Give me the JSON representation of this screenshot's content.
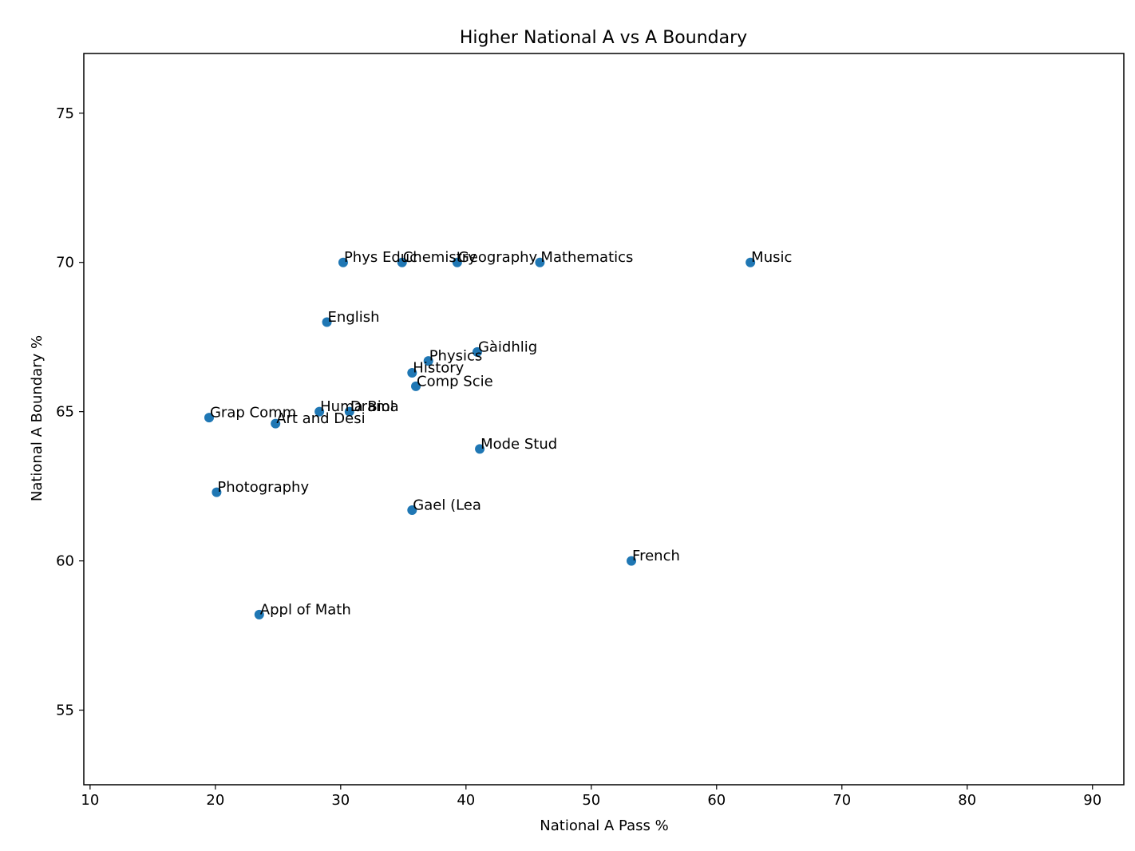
{
  "chart_data": {
    "type": "scatter",
    "title": "Higher National A vs A Boundary",
    "xlabel": "National A Pass %",
    "ylabel": "National A Boundary %",
    "xlim": [
      9.5,
      92.5
    ],
    "ylim": [
      52.5,
      77.0
    ],
    "xticks": [
      10,
      20,
      30,
      40,
      50,
      60,
      70,
      80,
      90
    ],
    "yticks": [
      55,
      60,
      65,
      70,
      75
    ],
    "grid": false,
    "marker_color": "#1f77b4",
    "points": [
      {
        "label": "Phys Educ",
        "x": 30.2,
        "y": 70.0
      },
      {
        "label": "Chemistry",
        "x": 34.9,
        "y": 70.0
      },
      {
        "label": "Geography",
        "x": 39.3,
        "y": 70.0
      },
      {
        "label": "Mathematics",
        "x": 45.9,
        "y": 70.0
      },
      {
        "label": "Music",
        "x": 62.7,
        "y": 70.0
      },
      {
        "label": "English",
        "x": 28.9,
        "y": 68.0
      },
      {
        "label": "Gàidhlig",
        "x": 40.9,
        "y": 67.0
      },
      {
        "label": "Physics",
        "x": 37.0,
        "y": 66.7
      },
      {
        "label": "History",
        "x": 35.7,
        "y": 66.3
      },
      {
        "label": "Comp Scie",
        "x": 36.0,
        "y": 65.85
      },
      {
        "label": "Huma Biol",
        "x": 28.3,
        "y": 65.0
      },
      {
        "label": "Drama",
        "x": 30.7,
        "y": 65.0
      },
      {
        "label": "Grap Comm",
        "x": 19.5,
        "y": 64.8
      },
      {
        "label": "Art and Desi",
        "x": 24.8,
        "y": 64.6
      },
      {
        "label": "Mode Stud",
        "x": 41.1,
        "y": 63.75
      },
      {
        "label": "Photography",
        "x": 20.1,
        "y": 62.3
      },
      {
        "label": "Gael (Lea",
        "x": 35.7,
        "y": 61.7
      },
      {
        "label": "French",
        "x": 53.2,
        "y": 60.0
      },
      {
        "label": "Appl of Math",
        "x": 23.5,
        "y": 58.2
      }
    ]
  }
}
